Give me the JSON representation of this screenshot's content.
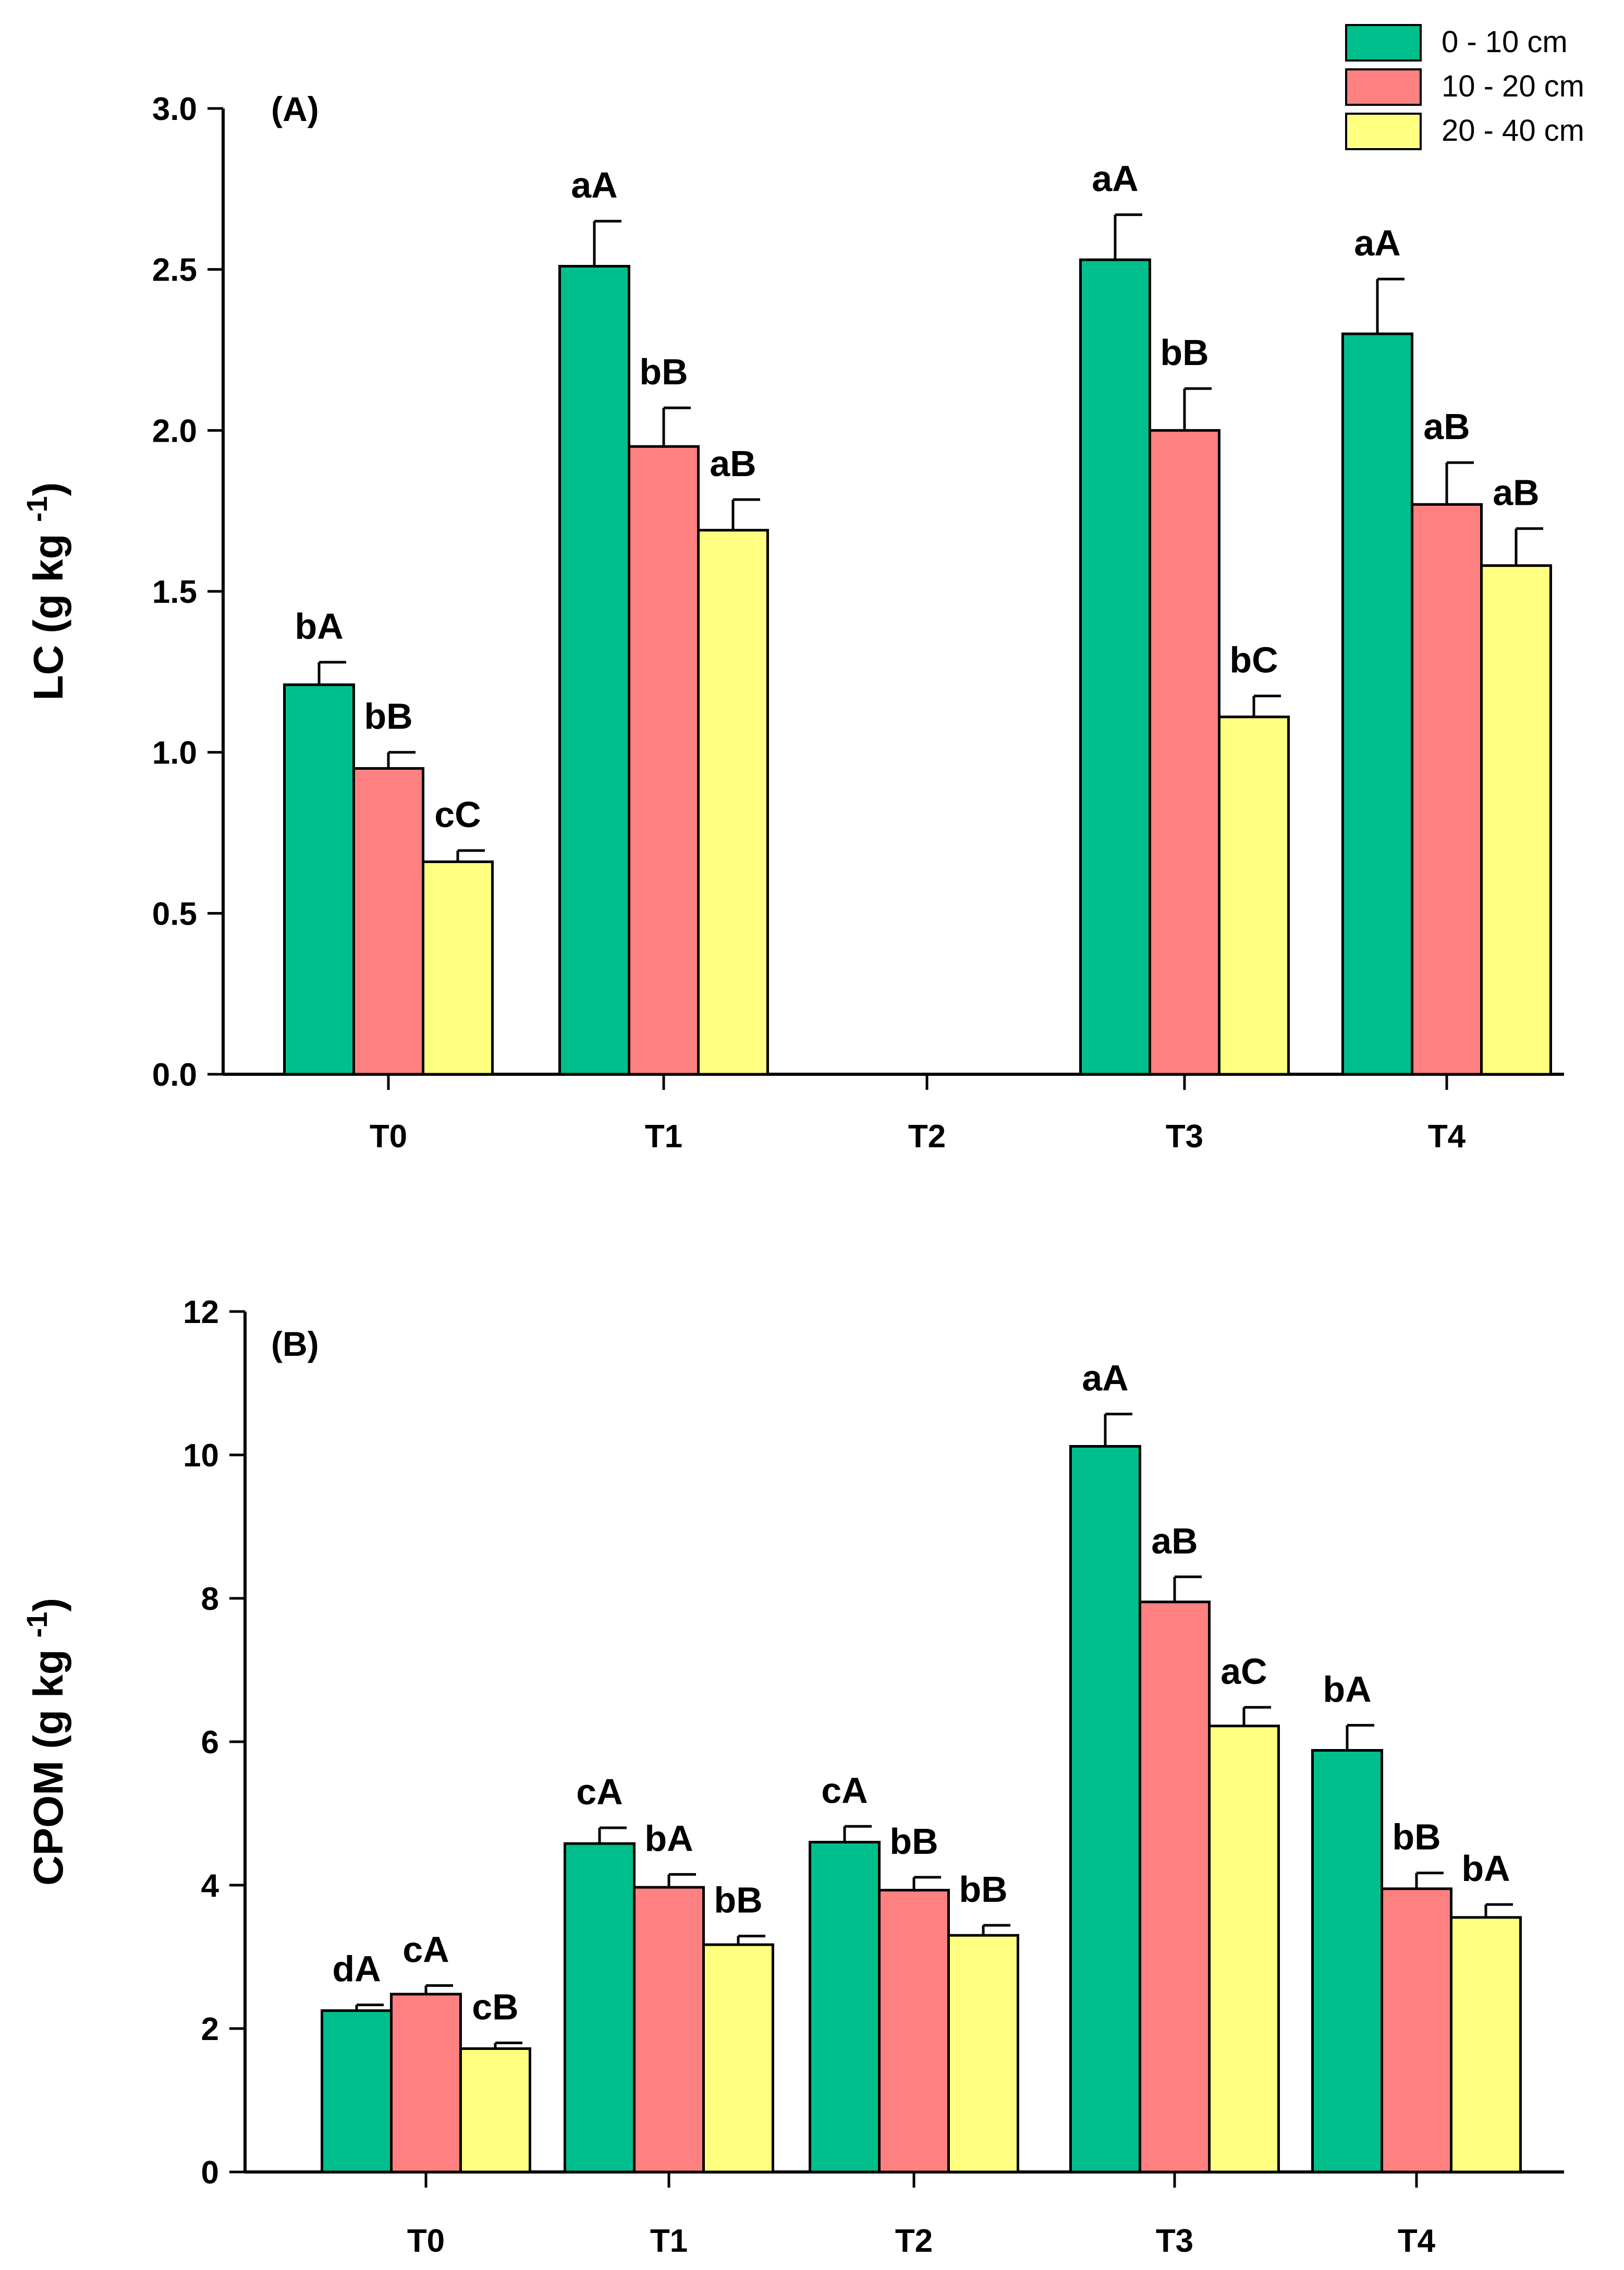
{
  "legend": [
    {
      "label": "0 - 10 cm",
      "color": "#00BF8C"
    },
    {
      "label": "10 - 20 cm",
      "color": "#FF8080"
    },
    {
      "label": "20 - 40 cm",
      "color": "#FFFF80"
    }
  ],
  "chart_data": [
    {
      "type": "bar",
      "panel_label": "(A)",
      "ylabel_main": "LC (g kg",
      "ylabel_sup": "-1",
      "ylabel_close": ")",
      "ylim": [
        0,
        3.0
      ],
      "yticks": [
        "0.0",
        "0.5",
        "1.0",
        "1.5",
        "2.0",
        "2.5",
        "3.0"
      ],
      "categories": [
        "T0",
        "T1",
        "T2",
        "T3",
        "T4"
      ],
      "series": [
        {
          "name": "0 - 10 cm",
          "values": [
            1.21,
            2.51,
            null,
            2.53,
            2.3
          ],
          "errors": [
            0.07,
            0.14,
            null,
            0.14,
            0.17
          ],
          "labels": [
            "bA",
            "aA",
            "",
            "aA",
            "aA"
          ]
        },
        {
          "name": "10 - 20 cm",
          "values": [
            0.95,
            1.95,
            null,
            2.0,
            1.77
          ],
          "errors": [
            0.05,
            0.12,
            null,
            0.13,
            0.13
          ],
          "labels": [
            "bB",
            "bB",
            "",
            "bB",
            "aB"
          ]
        },
        {
          "name": "20 - 40 cm",
          "values": [
            0.66,
            1.69,
            null,
            1.11,
            1.58
          ],
          "errors": [
            0.035,
            0.095,
            null,
            0.065,
            0.115
          ],
          "labels": [
            "cC",
            "aB",
            "",
            "bC",
            "aB"
          ]
        }
      ]
    },
    {
      "type": "bar",
      "panel_label": "(B)",
      "ylabel_main": "CPOM (g kg",
      "ylabel_sup": "-1",
      "ylabel_close": ")",
      "ylim": [
        0,
        12
      ],
      "yticks": [
        "0",
        "2",
        "4",
        "6",
        "8",
        "10",
        "12"
      ],
      "categories": [
        "T0",
        "T1",
        "T2",
        "T3",
        "T4"
      ],
      "series": [
        {
          "name": "0 - 10 cm",
          "values": [
            2.25,
            4.58,
            4.6,
            10.12,
            5.88
          ],
          "errors": [
            0.08,
            0.22,
            0.22,
            0.45,
            0.35
          ],
          "labels": [
            "dA",
            "cA",
            "cA",
            "aA",
            "bA"
          ]
        },
        {
          "name": "10 - 20 cm",
          "values": [
            2.48,
            3.97,
            3.93,
            7.95,
            3.95
          ],
          "errors": [
            0.12,
            0.18,
            0.18,
            0.35,
            0.22
          ],
          "labels": [
            "cA",
            "bA",
            "bB",
            "aB",
            "bB"
          ]
        },
        {
          "name": "20 - 40 cm",
          "values": [
            1.72,
            3.17,
            3.3,
            6.22,
            3.55
          ],
          "errors": [
            0.08,
            0.12,
            0.14,
            0.26,
            0.18
          ],
          "labels": [
            "cB",
            "bB",
            "bB",
            "aC",
            "bA"
          ]
        }
      ]
    }
  ]
}
